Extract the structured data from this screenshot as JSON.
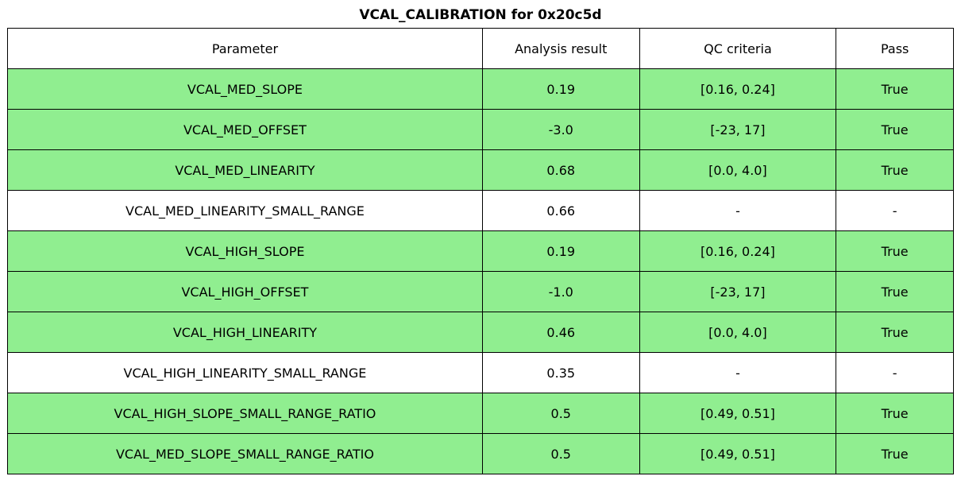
{
  "title": "VCAL_CALIBRATION for 0x20c5d",
  "colors": {
    "pass_green": "#90EE90",
    "na_white": "#FFFFFF",
    "border": "#000000",
    "text": "#000000"
  },
  "chart_data": {
    "type": "table",
    "title": "VCAL_CALIBRATION for 0x20c5d",
    "columns": [
      "Parameter",
      "Analysis result",
      "QC criteria",
      "Pass"
    ],
    "rows": [
      [
        "VCAL_MED_SLOPE",
        "0.19",
        "[0.16, 0.24]",
        "True"
      ],
      [
        "VCAL_MED_OFFSET",
        "-3.0",
        "[-23, 17]",
        "True"
      ],
      [
        "VCAL_MED_LINEARITY",
        "0.68",
        "[0.0, 4.0]",
        "True"
      ],
      [
        "VCAL_MED_LINEARITY_SMALL_RANGE",
        "0.66",
        "-",
        "-"
      ],
      [
        "VCAL_HIGH_SLOPE",
        "0.19",
        "[0.16, 0.24]",
        "True"
      ],
      [
        "VCAL_HIGH_OFFSET",
        "-1.0",
        "[-23, 17]",
        "True"
      ],
      [
        "VCAL_HIGH_LINEARITY",
        "0.46",
        "[0.0, 4.0]",
        "True"
      ],
      [
        "VCAL_HIGH_LINEARITY_SMALL_RANGE",
        "0.35",
        "-",
        "-"
      ],
      [
        "VCAL_HIGH_SLOPE_SMALL_RANGE_RATIO",
        "0.5",
        "[0.49, 0.51]",
        "True"
      ],
      [
        "VCAL_MED_SLOPE_SMALL_RANGE_RATIO",
        "0.5",
        "[0.49, 0.51]",
        "True"
      ]
    ],
    "row_highlighted": [
      true,
      true,
      true,
      false,
      true,
      true,
      true,
      false,
      true,
      true
    ],
    "layout": {
      "header_background": "#FFFFFF",
      "pass_row_background": "#90EE90",
      "na_row_background": "#FFFFFF",
      "grid": true
    }
  }
}
